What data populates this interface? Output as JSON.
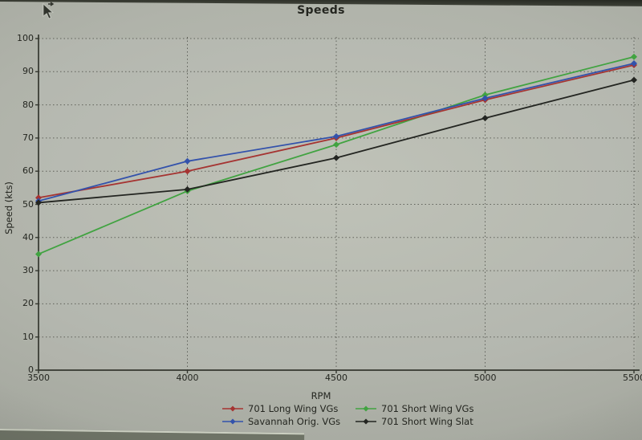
{
  "screen": {
    "pointer": "arrow-cursor"
  },
  "chart_data": {
    "type": "line",
    "title": "Speeds",
    "xlabel": "RPM",
    "ylabel": "Speed (kts)",
    "xlim": [
      3500,
      5500
    ],
    "ylim": [
      0,
      100
    ],
    "grid": "dotted horizontal and vertical gridlines",
    "legend_position": "bottom-center, 2 columns",
    "x": [
      3500,
      4000,
      4500,
      5000,
      5500
    ],
    "x_tick_labels": [
      "3500",
      "4000",
      "4500",
      "5000",
      "5500"
    ],
    "y_tick_values": [
      0,
      10,
      20,
      30,
      40,
      50,
      60,
      70,
      80,
      90,
      100
    ],
    "y_tick_labels": [
      "0",
      "10",
      "20",
      "30",
      "40",
      "50",
      "60",
      "70",
      "80",
      "90",
      "100"
    ],
    "series": [
      {
        "name": "701 Long Wing VGs",
        "color": "#b5302d",
        "marker": "diamond",
        "values": [
          52,
          60,
          70,
          81.5,
          92
        ]
      },
      {
        "name": "701 Short Wing VGs",
        "color": "#35a835",
        "marker": "diamond",
        "values": [
          35,
          54,
          68,
          83,
          94.5
        ]
      },
      {
        "name": "Savannah Orig. VGs",
        "color": "#2e52bb",
        "marker": "diamond",
        "values": [
          51,
          63,
          70.5,
          82,
          92.5
        ]
      },
      {
        "name": "701 Short Wing Slat",
        "color": "#232520",
        "marker": "diamond",
        "values": [
          50.5,
          54.5,
          64,
          76,
          87.5
        ]
      }
    ],
    "axis_color": "#34372e",
    "grid_color": "#50534a"
  }
}
